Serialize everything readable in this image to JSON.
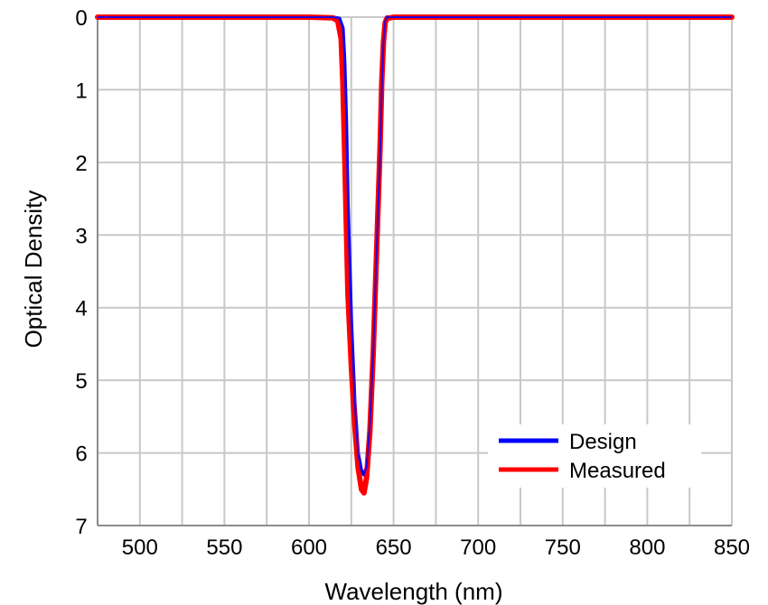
{
  "chart_data": {
    "type": "line",
    "xlabel": "Wavelength (nm)",
    "ylabel": "Optical Density",
    "xlim": [
      475,
      850
    ],
    "ylim": [
      0,
      7
    ],
    "y_inverted": true,
    "grid": true,
    "x_ticks": [
      500,
      550,
      600,
      650,
      700,
      750,
      800,
      850
    ],
    "y_ticks": [
      0,
      1,
      2,
      3,
      4,
      5,
      6,
      7
    ],
    "legend_position": "bottom-right",
    "series": [
      {
        "name": "Design",
        "color": "#0000ff",
        "x": [
          475,
          600,
          614,
          618,
          620,
          621,
          622,
          623,
          625,
          627,
          629,
          631,
          632.5,
          634,
          636,
          638,
          640,
          642,
          643,
          644,
          645,
          646,
          650,
          700,
          850
        ],
        "y": [
          0,
          0,
          0,
          0.02,
          0.15,
          0.6,
          1.4,
          2.6,
          4.2,
          5.3,
          6.0,
          6.25,
          6.3,
          6.2,
          5.6,
          4.6,
          3.2,
          1.9,
          1.0,
          0.35,
          0.05,
          0,
          0,
          0,
          0
        ]
      },
      {
        "name": "Measured",
        "color": "#ff0000",
        "x": [
          475,
          600,
          614,
          617,
          619,
          620,
          621,
          622,
          623,
          625,
          627,
          629,
          631,
          632.5,
          634,
          636,
          638,
          640,
          642,
          643,
          644,
          645,
          646,
          650,
          700,
          850
        ],
        "y": [
          0,
          0,
          0.01,
          0.05,
          0.3,
          0.9,
          1.8,
          2.8,
          3.8,
          4.8,
          5.6,
          6.2,
          6.5,
          6.55,
          6.35,
          5.7,
          4.6,
          3.2,
          1.8,
          0.9,
          0.35,
          0.08,
          0.02,
          0,
          0,
          0
        ]
      }
    ]
  }
}
